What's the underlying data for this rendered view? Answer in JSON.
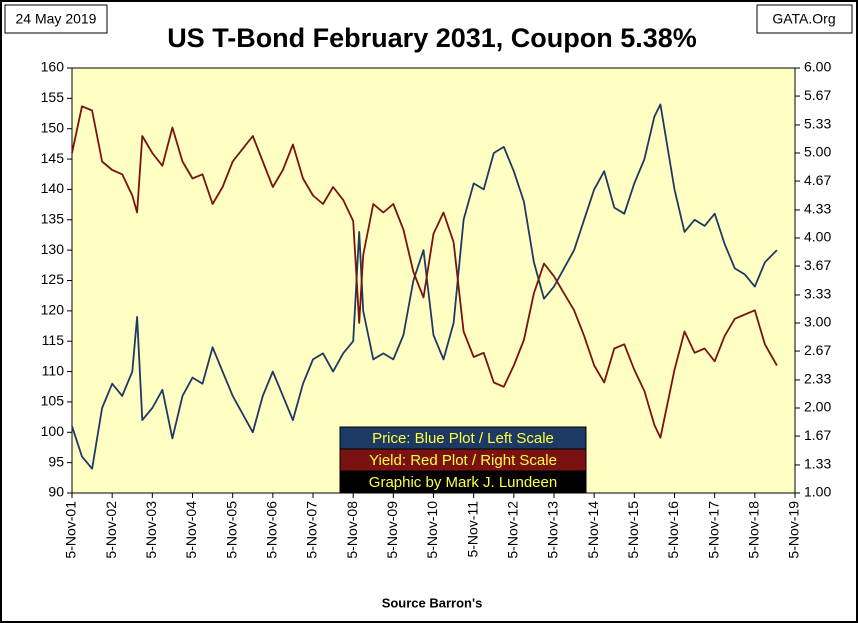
{
  "chart_data": {
    "type": "line",
    "title": "US T-Bond February 2031, Coupon 5.38%",
    "date_label": "24 May 2019",
    "source_label": "GATA.Org",
    "credit": "Graphic by Mark J. Lundeen",
    "x_axis_label": "Source Barron's",
    "x": [
      2001.85,
      2002.1,
      2002.35,
      2002.6,
      2002.85,
      2003.1,
      2003.35,
      2003.47,
      2003.6,
      2003.85,
      2004.1,
      2004.35,
      2004.6,
      2004.85,
      2005.1,
      2005.35,
      2005.6,
      2005.85,
      2006.1,
      2006.35,
      2006.6,
      2006.85,
      2007.1,
      2007.35,
      2007.6,
      2007.85,
      2008.1,
      2008.35,
      2008.6,
      2008.85,
      2009.0,
      2009.1,
      2009.35,
      2009.6,
      2009.85,
      2010.1,
      2010.35,
      2010.6,
      2010.85,
      2011.1,
      2011.35,
      2011.6,
      2011.85,
      2012.1,
      2012.35,
      2012.6,
      2012.85,
      2013.1,
      2013.35,
      2013.6,
      2013.85,
      2014.1,
      2014.35,
      2014.6,
      2014.85,
      2015.1,
      2015.35,
      2015.6,
      2015.85,
      2016.1,
      2016.35,
      2016.5,
      2016.85,
      2017.1,
      2017.35,
      2017.6,
      2017.85,
      2018.1,
      2018.35,
      2018.6,
      2018.85,
      2019.1,
      2019.4
    ],
    "series": [
      {
        "name": "Price:  Blue Plot / Left Scale",
        "color": "#1c3a64",
        "axis": "y",
        "values": [
          101,
          96,
          94,
          104,
          108,
          106,
          110,
          119,
          102,
          104,
          107,
          99,
          106,
          109,
          108,
          114,
          110,
          106,
          103,
          100,
          106,
          110,
          106,
          102,
          108,
          112,
          113,
          110,
          113,
          115,
          133,
          120,
          112,
          113,
          112,
          116,
          125,
          130,
          116,
          112,
          118,
          135,
          141,
          140,
          146,
          147,
          143,
          138,
          128,
          122,
          124,
          127,
          130,
          135,
          140,
          143,
          137,
          136,
          141,
          145,
          152,
          154,
          140,
          133,
          135,
          134,
          136,
          131,
          127,
          126,
          124,
          128,
          130
        ]
      },
      {
        "name": "Yield:  Red Plot / Right Scale",
        "color": "#7a1212",
        "axis": "y2",
        "values": [
          5.0,
          5.55,
          5.5,
          4.9,
          4.8,
          4.75,
          4.5,
          4.3,
          5.2,
          5.0,
          4.85,
          5.3,
          4.9,
          4.7,
          4.75,
          4.4,
          4.6,
          4.9,
          5.05,
          5.2,
          4.9,
          4.6,
          4.8,
          5.1,
          4.7,
          4.5,
          4.4,
          4.6,
          4.45,
          4.2,
          3.0,
          3.8,
          4.4,
          4.3,
          4.4,
          4.1,
          3.6,
          3.3,
          4.05,
          4.3,
          3.95,
          2.9,
          2.6,
          2.65,
          2.3,
          2.25,
          2.5,
          2.8,
          3.35,
          3.7,
          3.55,
          3.35,
          3.15,
          2.85,
          2.5,
          2.3,
          2.7,
          2.75,
          2.45,
          2.2,
          1.8,
          1.65,
          2.45,
          2.9,
          2.65,
          2.7,
          2.55,
          2.85,
          3.05,
          3.1,
          3.15,
          2.75,
          2.5
        ]
      }
    ],
    "xlim": [
      2001.85,
      2019.85
    ],
    "xticks": [
      {
        "value": 2001.85,
        "label": "5-Nov-01"
      },
      {
        "value": 2002.85,
        "label": "5-Nov-02"
      },
      {
        "value": 2003.85,
        "label": "5-Nov-03"
      },
      {
        "value": 2004.85,
        "label": "5-Nov-04"
      },
      {
        "value": 2005.85,
        "label": "5-Nov-05"
      },
      {
        "value": 2006.85,
        "label": "5-Nov-06"
      },
      {
        "value": 2007.85,
        "label": "5-Nov-07"
      },
      {
        "value": 2008.85,
        "label": "5-Nov-08"
      },
      {
        "value": 2009.85,
        "label": "5-Nov-09"
      },
      {
        "value": 2010.85,
        "label": "5-Nov-10"
      },
      {
        "value": 2011.85,
        "label": "5-Nov-11"
      },
      {
        "value": 2012.85,
        "label": "5-Nov-12"
      },
      {
        "value": 2013.85,
        "label": "5-Nov-13"
      },
      {
        "value": 2014.85,
        "label": "5-Nov-14"
      },
      {
        "value": 2015.85,
        "label": "5-Nov-15"
      },
      {
        "value": 2016.85,
        "label": "5-Nov-16"
      },
      {
        "value": 2017.85,
        "label": "5-Nov-17"
      },
      {
        "value": 2018.85,
        "label": "5-Nov-18"
      },
      {
        "value": 2019.85,
        "label": "5-Nov-19"
      }
    ],
    "ylim": [
      90,
      160
    ],
    "yticks": [
      90,
      95,
      100,
      105,
      110,
      115,
      120,
      125,
      130,
      135,
      140,
      145,
      150,
      155,
      160
    ],
    "y2lim": [
      1,
      6
    ],
    "y2ticks": [
      {
        "value": 1,
        "label": "1.00"
      },
      1.33,
      1.67,
      {
        "value": 2,
        "label": "2.00"
      },
      2.33,
      2.67,
      {
        "value": 3,
        "label": "3.00"
      },
      3.33,
      3.67,
      {
        "value": 4,
        "label": "4.00"
      },
      4.33,
      4.67,
      {
        "value": 5,
        "label": "5.00"
      },
      5.33,
      5.67,
      {
        "value": 6,
        "label": "6.00"
      }
    ],
    "grid": false
  }
}
